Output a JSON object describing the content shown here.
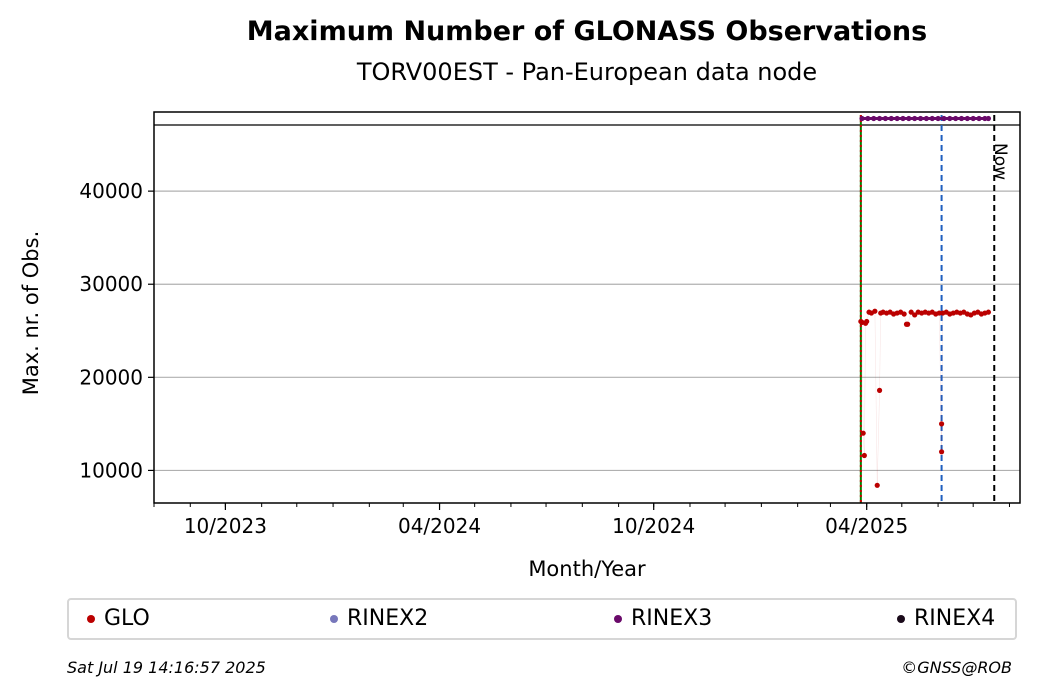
{
  "chart_data": {
    "type": "scatter",
    "title": "Maximum Number of GLONASS Observations",
    "subtitle": "TORV00EST - Pan-European data node",
    "xlabel": "Month/Year",
    "ylabel": "Max. nr. of Obs.",
    "x_tick_labels": [
      "10/2023",
      "04/2024",
      "10/2024",
      "04/2025"
    ],
    "x_tick_dates": [
      "2023-10-01",
      "2024-04-01",
      "2024-10-01",
      "2025-04-01"
    ],
    "xlim": [
      "2023-08-01",
      "2025-08-10"
    ],
    "y_ticks": [
      10000,
      20000,
      30000,
      40000
    ],
    "ylim": [
      6500,
      48500
    ],
    "grid": "horizontal",
    "reference_line": 47100,
    "vertical_lines": [
      {
        "date": "2025-03-27",
        "color": "#008000",
        "style": "solid"
      },
      {
        "date": "2025-03-27",
        "color": "#cc0000",
        "style": "dotted"
      },
      {
        "date": "2025-06-04",
        "color": "#1f5fbf",
        "style": "dashed"
      },
      {
        "date": "2025-07-19",
        "color": "#000000",
        "style": "dashed",
        "label": "Now"
      }
    ],
    "legend": {
      "position": "bottom",
      "entries": [
        {
          "name": "GLO",
          "color": "#bb0000"
        },
        {
          "name": "RINEX2",
          "color": "#7777bb"
        },
        {
          "name": "RINEX3",
          "color": "#6a0a6a"
        },
        {
          "name": "RINEX4",
          "color": "#1a0a1a"
        }
      ]
    },
    "series": [
      {
        "name": "RINEX3",
        "color": "#6a0a6a",
        "x": [
          "2025-03-28",
          "2025-04-02",
          "2025-04-07",
          "2025-04-12",
          "2025-04-17",
          "2025-04-22",
          "2025-04-27",
          "2025-05-02",
          "2025-05-07",
          "2025-05-12",
          "2025-05-17",
          "2025-05-22",
          "2025-05-27",
          "2025-06-01",
          "2025-06-06",
          "2025-06-11",
          "2025-06-16",
          "2025-06-21",
          "2025-06-26",
          "2025-07-01",
          "2025-07-06",
          "2025-07-11",
          "2025-07-14"
        ],
        "y": [
          47800,
          47800,
          47800,
          47800,
          47800,
          47800,
          47800,
          47800,
          47800,
          47800,
          47800,
          47800,
          47800,
          47800,
          47800,
          47800,
          47800,
          47800,
          47800,
          47800,
          47800,
          47800,
          47800
        ]
      },
      {
        "name": "GLO",
        "color": "#bb0000",
        "x": [
          "2025-03-27",
          "2025-03-28",
          "2025-03-29",
          "2025-03-30",
          "2025-03-31",
          "2025-04-01",
          "2025-04-03",
          "2025-04-05",
          "2025-04-08",
          "2025-04-10",
          "2025-04-12",
          "2025-04-13",
          "2025-04-15",
          "2025-04-18",
          "2025-04-21",
          "2025-04-24",
          "2025-04-27",
          "2025-04-30",
          "2025-05-03",
          "2025-05-05",
          "2025-05-06",
          "2025-05-09",
          "2025-05-12",
          "2025-05-15",
          "2025-05-18",
          "2025-05-21",
          "2025-05-24",
          "2025-05-27",
          "2025-05-30",
          "2025-06-02",
          "2025-06-04",
          "2025-06-04",
          "2025-06-05",
          "2025-06-08",
          "2025-06-11",
          "2025-06-14",
          "2025-06-17",
          "2025-06-20",
          "2025-06-23",
          "2025-06-26",
          "2025-06-29",
          "2025-07-02",
          "2025-07-05",
          "2025-07-08",
          "2025-07-11",
          "2025-07-14"
        ],
        "y": [
          26000,
          25900,
          14000,
          11600,
          25800,
          26000,
          27000,
          26900,
          27100,
          8400,
          18600,
          26900,
          27000,
          26900,
          27000,
          26800,
          26900,
          27000,
          26800,
          25700,
          25700,
          27000,
          26700,
          27000,
          26900,
          27000,
          26900,
          27000,
          26800,
          26900,
          12000,
          15000,
          26900,
          27000,
          26800,
          26900,
          27000,
          26900,
          27000,
          26800,
          26700,
          26900,
          27000,
          26800,
          26900,
          27000
        ]
      }
    ]
  },
  "footer": {
    "timestamp": "Sat Jul 19 14:16:57 2025",
    "copyright": "©GNSS@ROB"
  }
}
